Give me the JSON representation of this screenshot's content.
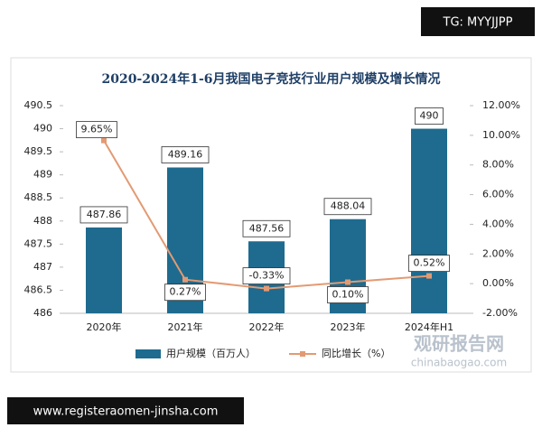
{
  "chart_data": {
    "type": "bar-line",
    "title": "2020-2024年1-6月我国电子竞技行业用户规模及增长情况",
    "categories": [
      "2020年",
      "2021年",
      "2022年",
      "2023年",
      "2024年H1"
    ],
    "series": [
      {
        "name": "用户规模（百万人）",
        "type": "bar",
        "color": "#1e6b8f",
        "values": [
          487.86,
          489.16,
          487.56,
          488.04,
          490
        ]
      },
      {
        "name": "同比增长（%）",
        "type": "line",
        "axis": "y2",
        "color": "#e39a73",
        "values": [
          9.65,
          0.27,
          -0.33,
          0.1,
          0.52
        ],
        "value_labels": [
          "9.65%",
          "0.27%",
          "-0.33%",
          "0.10%",
          "0.52%"
        ]
      }
    ],
    "ylim": [
      486,
      490.5
    ],
    "yticks": [
      486,
      486.5,
      487,
      487.5,
      488,
      488.5,
      489,
      489.5,
      490,
      490.5
    ],
    "y2lim": [
      -2,
      12
    ],
    "y2ticks": [
      {
        "value": -2,
        "label": "-2.00%"
      },
      {
        "value": 0,
        "label": "0.00%"
      },
      {
        "value": 2,
        "label": "2.00%"
      },
      {
        "value": 4,
        "label": "4.00%"
      },
      {
        "value": 6,
        "label": "6.00%"
      },
      {
        "value": 8,
        "label": "8.00%"
      },
      {
        "value": 10,
        "label": "10.00%"
      },
      {
        "value": 12,
        "label": "12.00%"
      }
    ],
    "grid": false,
    "legend": "bottom"
  },
  "watermarks": {
    "top_right": "TG: MYYJJPP",
    "bottom_left": "www.registeraomen-jinsha.com",
    "brand": "观研报告网",
    "brand_url": "chinabaogao.com"
  }
}
